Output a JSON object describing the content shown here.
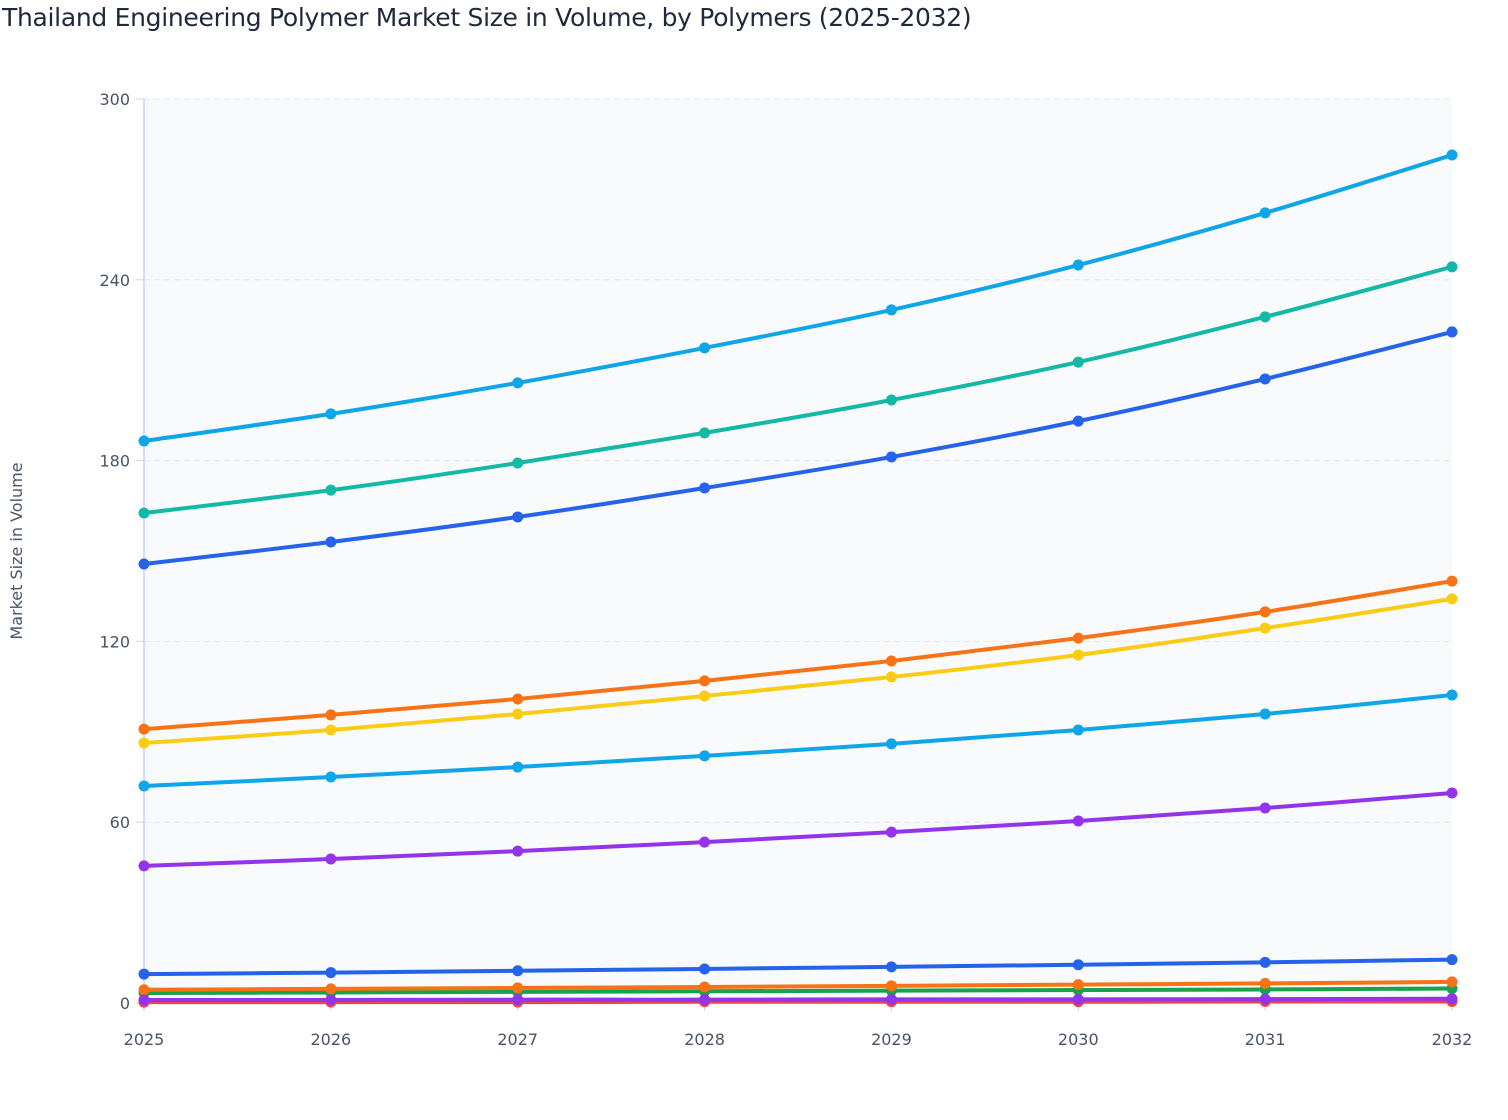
{
  "chart_data": {
    "type": "line",
    "title": "Thailand Engineering Polymer Market Size in Volume, by Polymers (2025-2032)",
    "xlabel": "",
    "ylabel": "Market Size in Volume",
    "x": [
      "2025",
      "2026",
      "2027",
      "2028",
      "2029",
      "2030",
      "2031",
      "2032"
    ],
    "ylim": [
      0,
      300
    ],
    "yticks": [
      0,
      60,
      120,
      180,
      240,
      300
    ],
    "grid": true,
    "legend": "none",
    "series": [
      {
        "color": "#ef4444",
        "values": [
          0.3,
          0.3,
          0.3,
          0.4,
          0.4,
          0.4,
          0.5,
          0.5
        ]
      },
      {
        "color": "#16a34a",
        "values": [
          3.3,
          3.5,
          3.7,
          3.9,
          4.1,
          4.3,
          4.5,
          4.8
        ]
      },
      {
        "color": "#f97316",
        "values": [
          4.4,
          4.7,
          5.0,
          5.3,
          5.7,
          6.1,
          6.5,
          7.0
        ]
      },
      {
        "color": "#9333ea",
        "values": [
          1.0,
          1.0,
          1.1,
          1.1,
          1.2,
          1.2,
          1.3,
          1.4
        ]
      },
      {
        "color": "#2563eb",
        "values": [
          9.6,
          10.1,
          10.7,
          11.3,
          12.0,
          12.7,
          13.5,
          14.4
        ]
      },
      {
        "color": "#9333ea",
        "values": [
          45.5,
          47.8,
          50.4,
          53.4,
          56.7,
          60.4,
          64.7,
          69.7
        ]
      },
      {
        "color": "#0ea5e9",
        "values": [
          72.0,
          75.0,
          78.3,
          82.0,
          86.0,
          90.6,
          95.9,
          102.2
        ]
      },
      {
        "color": "#facc15",
        "values": [
          86.3,
          90.6,
          95.9,
          101.9,
          108.2,
          115.5,
          124.4,
          134.1
        ]
      },
      {
        "color": "#f97316",
        "values": [
          90.9,
          95.6,
          100.9,
          106.9,
          113.5,
          121.1,
          129.8,
          140.0
        ]
      },
      {
        "color": "#2563eb",
        "values": [
          145.7,
          153.0,
          161.3,
          170.9,
          181.2,
          193.1,
          207.1,
          222.7
        ]
      },
      {
        "color": "#14b8a6",
        "values": [
          162.6,
          170.2,
          179.2,
          189.2,
          200.1,
          212.7,
          227.7,
          244.3
        ]
      },
      {
        "color": "#0ea5e9",
        "values": [
          186.5,
          195.5,
          205.8,
          217.4,
          230.0,
          244.9,
          262.2,
          281.4
        ]
      }
    ]
  }
}
